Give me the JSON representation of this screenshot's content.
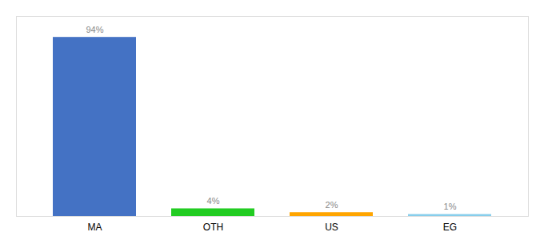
{
  "chart_data": {
    "type": "bar",
    "categories": [
      "MA",
      "OTH",
      "US",
      "EG"
    ],
    "values": [
      94,
      4,
      2,
      1
    ],
    "value_labels": [
      "94%",
      "4%",
      "2%",
      "1%"
    ],
    "colors": [
      "#4472C4",
      "#22CC22",
      "#FFA500",
      "#87CEEB"
    ],
    "ylim": [
      0,
      105
    ],
    "yticks": [],
    "grid": false,
    "data_labels": true,
    "tick_labels": "x"
  }
}
